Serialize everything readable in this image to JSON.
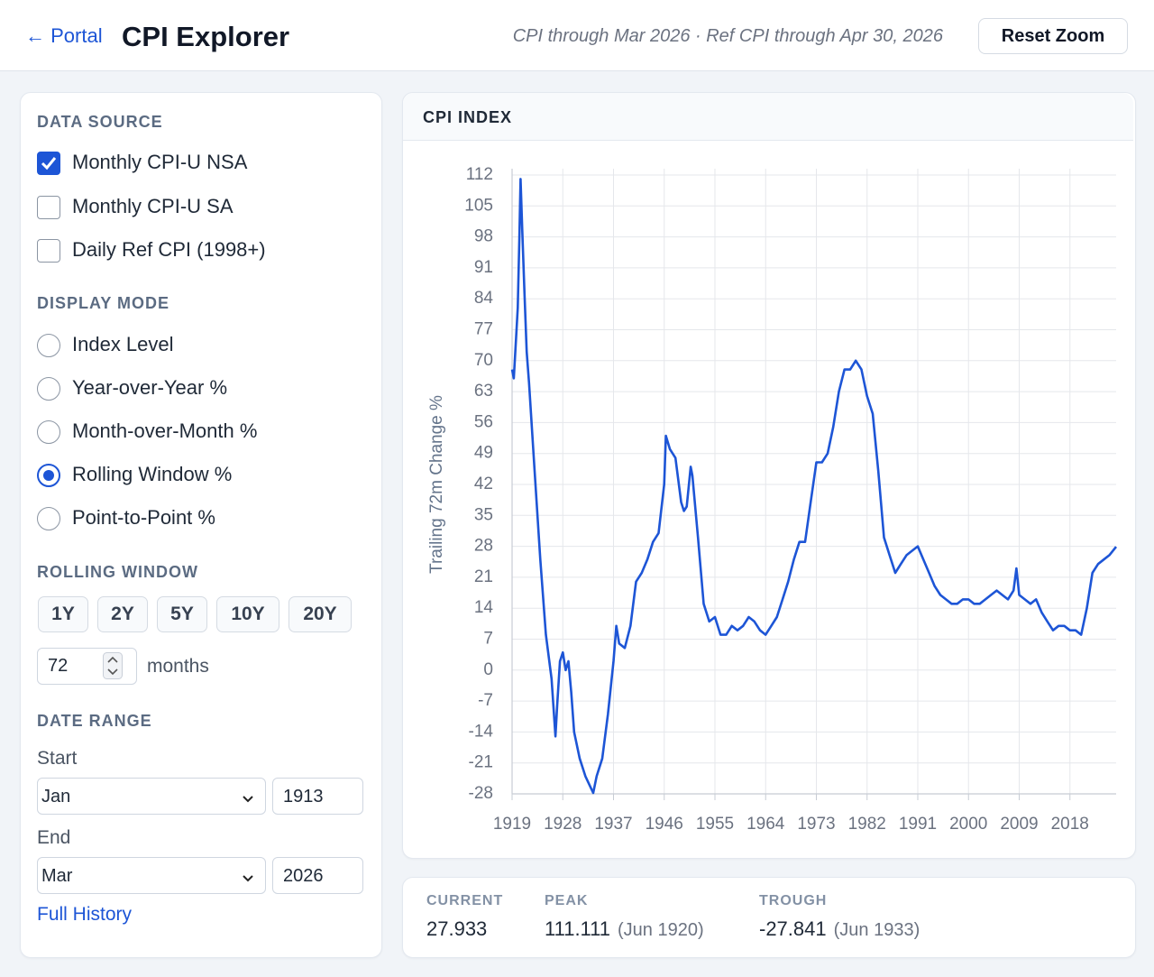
{
  "header": {
    "back_link": "← Portal",
    "title": "CPI Explorer",
    "status": "CPI through Mar 2026 · Ref CPI through Apr 30, 2026",
    "reset_button": "Reset Zoom"
  },
  "sidebar": {
    "data_source": {
      "heading": "DATA SOURCE",
      "options": [
        {
          "label": "Monthly CPI-U NSA",
          "checked": true
        },
        {
          "label": "Monthly CPI-U SA",
          "checked": false
        },
        {
          "label": "Daily Ref CPI (1998+)",
          "checked": false
        }
      ]
    },
    "display_mode": {
      "heading": "DISPLAY MODE",
      "options": [
        {
          "label": "Index Level",
          "selected": false
        },
        {
          "label": "Year-over-Year %",
          "selected": false
        },
        {
          "label": "Month-over-Month %",
          "selected": false
        },
        {
          "label": "Rolling Window %",
          "selected": true
        },
        {
          "label": "Point-to-Point %",
          "selected": false
        }
      ]
    },
    "rolling_window": {
      "heading": "ROLLING WINDOW",
      "presets": [
        "1Y",
        "2Y",
        "5Y",
        "10Y",
        "20Y"
      ],
      "months": "72",
      "unit": "months"
    },
    "date_range": {
      "heading": "DATE RANGE",
      "start_label": "Start",
      "start_month": "Jan",
      "start_year": "1913",
      "end_label": "End",
      "end_month": "Mar",
      "end_year": "2026",
      "full_history": "Full History"
    }
  },
  "panel": {
    "heading": "CPI INDEX"
  },
  "chart_data": {
    "type": "line",
    "y_label": "Trailing 72m Change %",
    "color": "#1d55d6",
    "grid": true,
    "x": [
      1919.0,
      1919.3,
      1919.7,
      1920.0,
      1920.3,
      1920.5,
      1920.8,
      1921.2,
      1921.6,
      1922.0,
      1922.5,
      1923,
      1924,
      1925,
      1926,
      1926.7,
      1927,
      1927.5,
      1928,
      1928.5,
      1929,
      1929.5,
      1930,
      1931,
      1932,
      1933.4,
      1934,
      1935,
      1936,
      1937,
      1937.5,
      1938,
      1939,
      1940,
      1941,
      1942,
      1943,
      1944,
      1945,
      1946,
      1946.3,
      1947,
      1948,
      1949,
      1949.5,
      1950,
      1950.7,
      1951,
      1952,
      1953,
      1954,
      1955,
      1956,
      1957,
      1958,
      1959,
      1960,
      1961,
      1962,
      1963,
      1964,
      1965,
      1966,
      1967,
      1968,
      1969,
      1970,
      1971,
      1972,
      1973,
      1974,
      1975,
      1976,
      1977,
      1978,
      1979,
      1980,
      1981,
      1982,
      1983,
      1984,
      1985,
      1986,
      1987,
      1988,
      1989,
      1990,
      1991,
      1992,
      1993,
      1994,
      1995,
      1996,
      1997,
      1998,
      1999,
      2000,
      2001,
      2002,
      2003,
      2004,
      2005,
      2006,
      2007,
      2008,
      2008.5,
      2009,
      2010,
      2011,
      2012,
      2013,
      2014,
      2015,
      2016,
      2017,
      2018,
      2019,
      2020,
      2021,
      2022,
      2023,
      2024,
      2025,
      2026.2
    ],
    "values": [
      68,
      66,
      75,
      82,
      98,
      111.1,
      100,
      85,
      72,
      65,
      55,
      45,
      25,
      8,
      -2,
      -15,
      -8,
      2,
      4,
      0,
      2,
      -5,
      -14,
      -20,
      -24,
      -27.8,
      -24,
      -20,
      -10,
      2,
      10,
      6,
      5,
      10,
      20,
      22,
      25,
      29,
      31,
      42,
      53,
      50,
      48,
      38,
      36,
      37,
      46,
      44,
      30,
      15,
      11,
      12,
      8,
      8,
      10,
      9,
      10,
      12,
      11,
      9,
      8,
      10,
      12,
      16,
      20,
      25,
      29,
      29,
      38,
      47,
      47,
      49,
      55,
      63,
      68,
      68,
      70,
      68,
      62,
      58,
      45,
      30,
      26,
      22,
      24,
      26,
      27,
      28,
      25,
      22,
      19,
      17,
      16,
      15,
      15,
      16,
      16,
      15,
      15,
      16,
      17,
      18,
      17,
      16,
      18,
      23,
      17,
      16,
      15,
      16,
      13,
      11,
      9,
      10,
      10,
      9,
      9,
      8,
      14,
      22,
      24,
      25,
      26,
      27.9
    ],
    "xlim": [
      1919,
      2026.2
    ],
    "ylim": [
      -28,
      112
    ],
    "xticks": [
      1919,
      1928,
      1937,
      1946,
      1955,
      1964,
      1973,
      1982,
      1991,
      2000,
      2009,
      2018
    ],
    "yticks": [
      112,
      105,
      98,
      91,
      84,
      77,
      70,
      63,
      56,
      49,
      42,
      35,
      28,
      21,
      14,
      7,
      0,
      -7,
      -14,
      -21,
      -28
    ]
  },
  "stats": [
    {
      "label": "CURRENT",
      "value": "27.933"
    },
    {
      "label": "PEAK",
      "value": "111.111",
      "date": "(Jun 1920)"
    },
    {
      "label": "TROUGH",
      "value": "-27.841",
      "date": "(Jun 1933)"
    }
  ]
}
